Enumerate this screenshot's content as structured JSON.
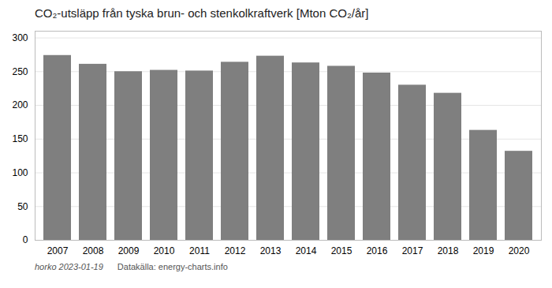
{
  "chart_data": {
    "type": "bar",
    "title": "CO₂-utsläpp från tyska brun- och stenkolkraftverk [Mton CO₂/år]",
    "categories": [
      "2007",
      "2008",
      "2009",
      "2010",
      "2011",
      "2012",
      "2013",
      "2014",
      "2015",
      "2016",
      "2017",
      "2018",
      "2019",
      "2020"
    ],
    "values": [
      274,
      261,
      250,
      252,
      251,
      264,
      273,
      263,
      258,
      248,
      230,
      218,
      163,
      132
    ],
    "color": "#7f7f7f",
    "ylim": [
      0,
      310
    ],
    "yticks": [
      0,
      50,
      100,
      150,
      200,
      250,
      300
    ],
    "grid": true,
    "annotations": [
      "horko 2023-01-19",
      "Datakälla: energy-charts.info"
    ]
  }
}
